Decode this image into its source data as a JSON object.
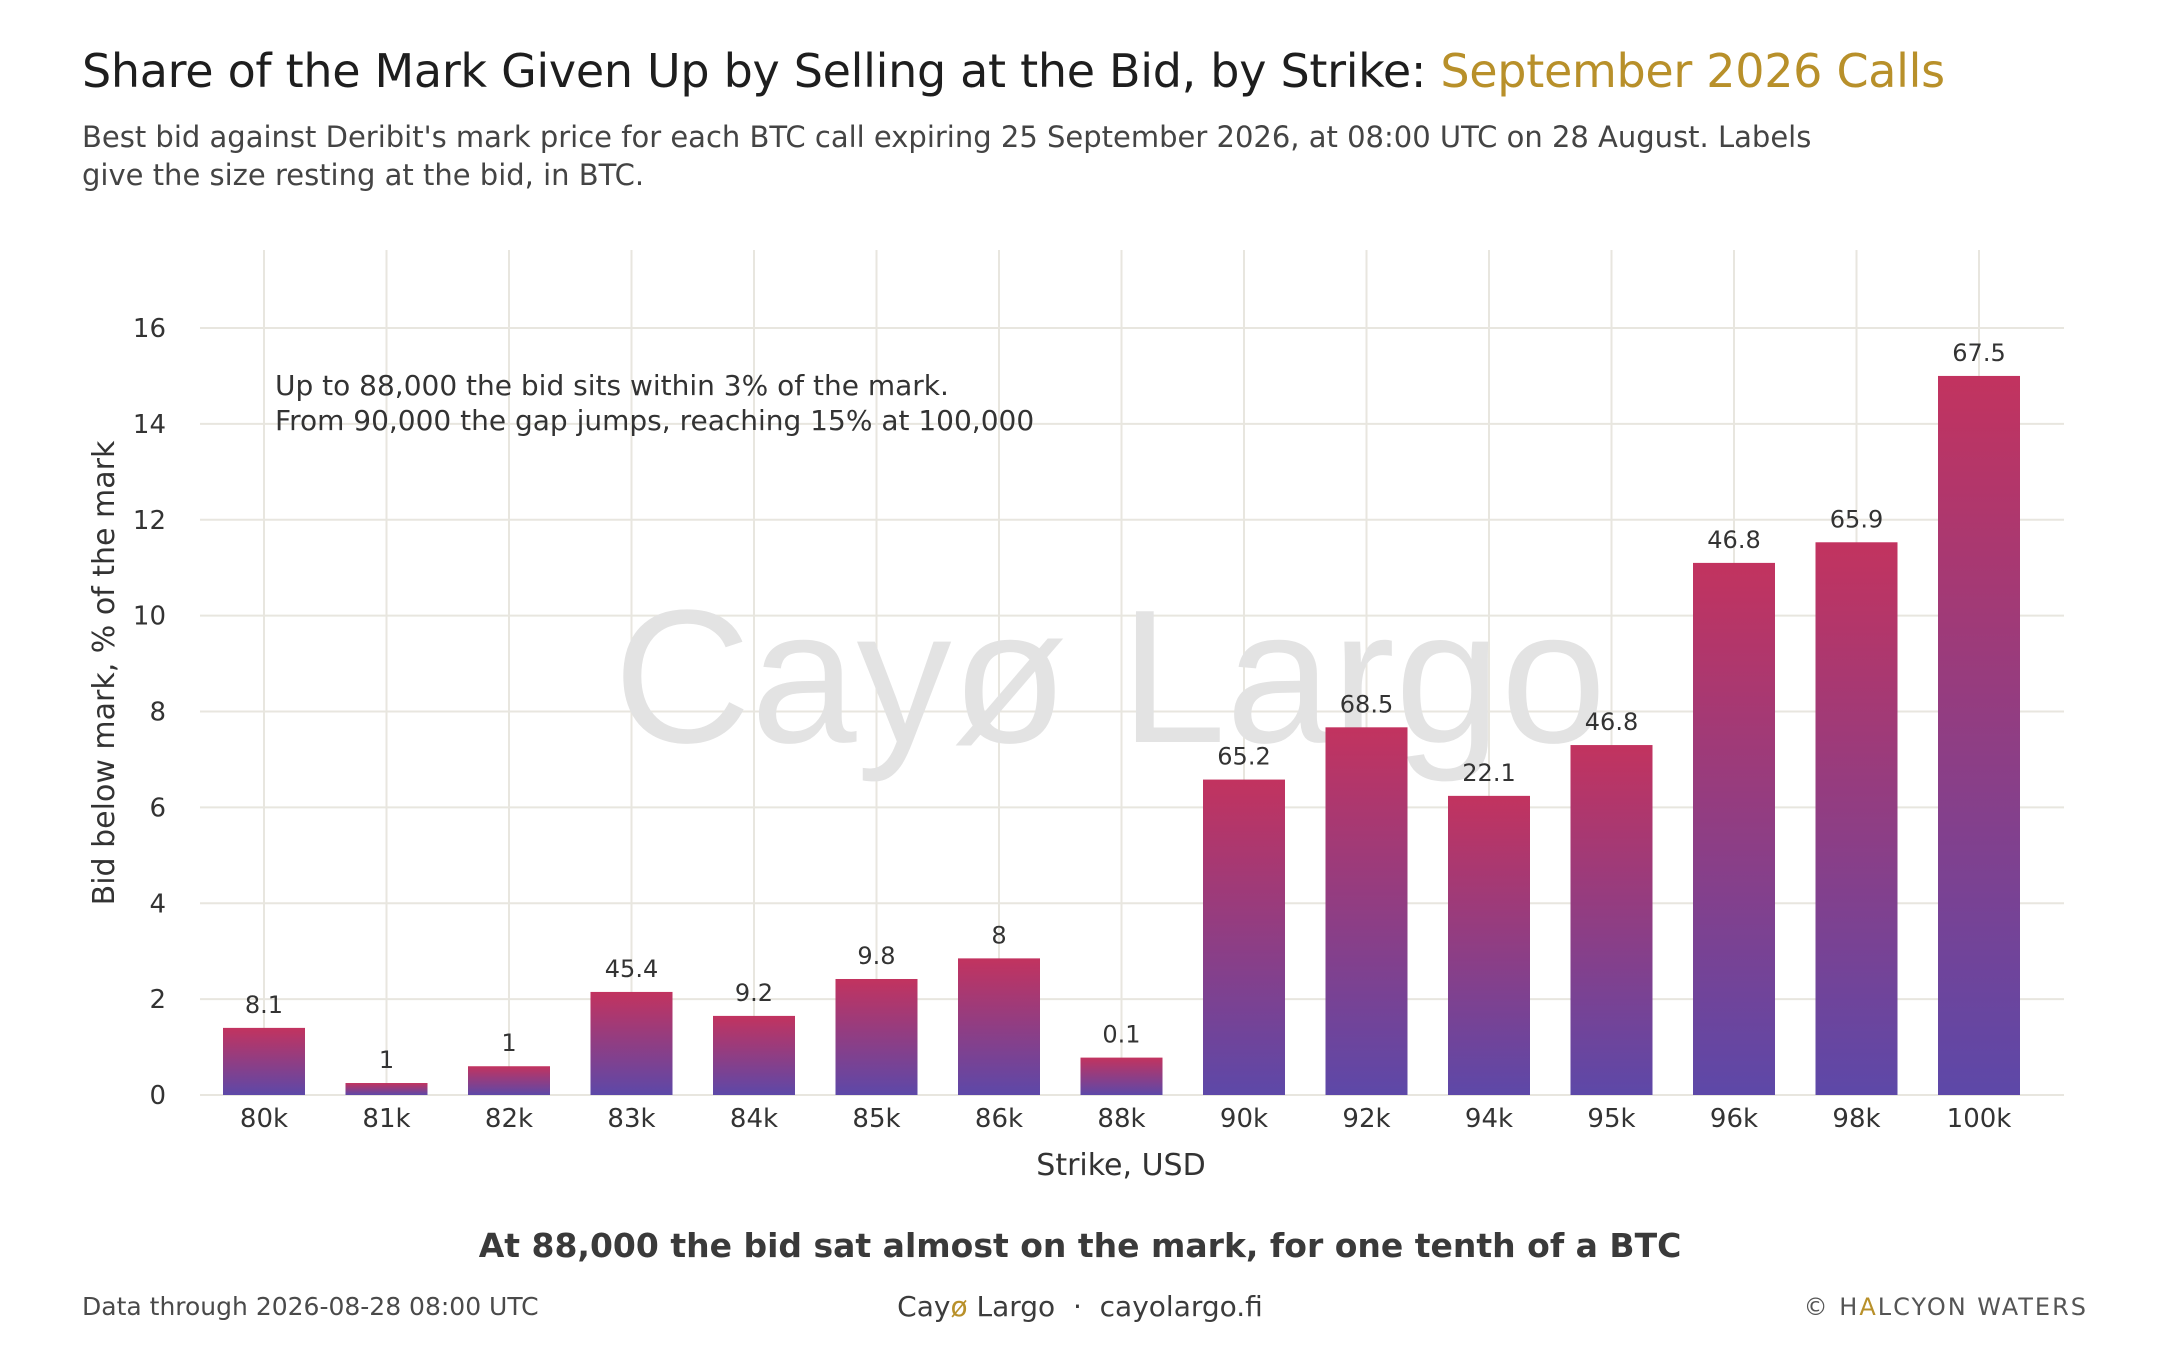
{
  "header": {
    "title_main": "Share of the Mark Given Up by Selling at the Bid, by Strike: ",
    "title_accent": "September 2026 Calls",
    "subtitle": "Best bid against Deribit's mark price for each BTC call expiring 25 September 2026, at 08:00 UTC on 28 August. Labels give the size resting at the bid, in BTC."
  },
  "chart_data": {
    "type": "bar",
    "categories": [
      "80k",
      "81k",
      "82k",
      "83k",
      "84k",
      "85k",
      "86k",
      "88k",
      "90k",
      "92k",
      "94k",
      "95k",
      "96k",
      "98k",
      "100k"
    ],
    "values": [
      1.4,
      0.25,
      0.6,
      2.15,
      1.65,
      2.42,
      2.85,
      0.78,
      6.58,
      7.67,
      6.24,
      7.3,
      11.1,
      11.53,
      15.0
    ],
    "bar_labels": [
      "8.1",
      "1",
      "1",
      "45.4",
      "9.2",
      "9.8",
      "8",
      "0.1",
      "65.2",
      "68.5",
      "22.1",
      "46.8",
      "46.8",
      "65.9",
      "67.5"
    ],
    "xlabel": "Strike, USD",
    "ylabel": "Bid below mark, % of the mark",
    "ylim": [
      0,
      17.5
    ],
    "yticks": [
      0,
      2,
      4,
      6,
      8,
      10,
      12,
      14,
      16
    ],
    "grid": true,
    "annotation": [
      "Up to 88,000 the bid sits within 3% of the mark.",
      "From 90,000 the gap jumps, reaching 15% at 100,000"
    ],
    "watermark": "Cayø Largo",
    "colors": {
      "bar_top": "#c2335f",
      "bar_bottom": "#5d48a8",
      "grid": "#e8e6df",
      "text": "#333333",
      "watermark": "#e3e3e3"
    }
  },
  "caption": "At 88,000 the bid sat almost on the mark, for one tenth of a BTC",
  "footer": {
    "data_through": "Data through 2026-08-28 08:00 UTC",
    "brand_pre": "Cay",
    "brand_oslash": "ø",
    "brand_post": " Largo  ·  cayolargo.fi",
    "copyright_pre": "© H",
    "copyright_accent": "A",
    "copyright_post": "LCYON WATERS"
  }
}
